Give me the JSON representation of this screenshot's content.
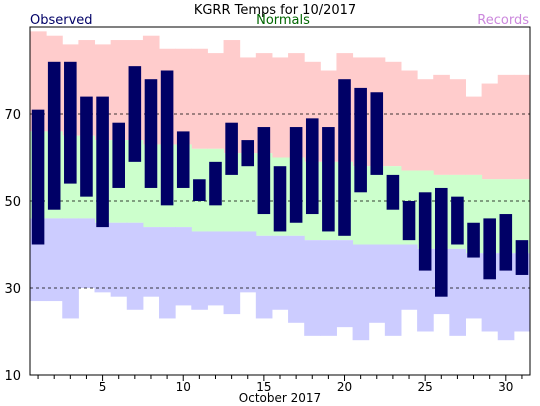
{
  "chart_data": {
    "type": "bar",
    "title": "KGRR Temps for 10/2017",
    "xlabel": "October 2017",
    "ylabel": "",
    "legend": [
      {
        "name": "Observed",
        "color": "#000066"
      },
      {
        "name": "Normals",
        "color": "#006600"
      },
      {
        "name": "Records",
        "color": "#cc88dd"
      }
    ],
    "ylim": [
      10,
      90
    ],
    "yticks": [
      10,
      30,
      50,
      70
    ],
    "xlim": [
      0.5,
      31.5
    ],
    "xticks": [
      5,
      10,
      15,
      20,
      25,
      30
    ],
    "gridlines_y": [
      30,
      50,
      70
    ],
    "colors": {
      "observed": "#000066",
      "normals": "#ccffcc",
      "records_high": "#ffcccc",
      "records_low": "#ccccff"
    },
    "days": [
      1,
      2,
      3,
      4,
      5,
      6,
      7,
      8,
      9,
      10,
      11,
      12,
      13,
      14,
      15,
      16,
      17,
      18,
      19,
      20,
      21,
      22,
      23,
      24,
      25,
      26,
      27,
      28,
      29,
      30,
      31
    ],
    "observed_high": [
      71,
      82,
      82,
      74,
      74,
      68,
      81,
      78,
      80,
      66,
      55,
      59,
      68,
      64,
      67,
      58,
      67,
      69,
      67,
      78,
      76,
      75,
      56,
      50,
      52,
      53,
      51,
      45,
      46,
      47,
      41
    ],
    "observed_low": [
      40,
      48,
      54,
      51,
      44,
      53,
      59,
      53,
      49,
      53,
      50,
      49,
      56,
      58,
      47,
      43,
      45,
      47,
      43,
      42,
      52,
      56,
      48,
      41,
      34,
      28,
      40,
      37,
      32,
      34,
      33
    ],
    "normal_high": [
      66,
      66,
      65,
      65,
      64,
      64,
      64,
      63,
      63,
      63,
      62,
      62,
      61,
      61,
      61,
      60,
      60,
      59,
      59,
      59,
      58,
      58,
      58,
      57,
      57,
      56,
      56,
      56,
      55,
      55,
      55
    ],
    "normal_low": [
      46,
      46,
      46,
      46,
      45,
      45,
      45,
      44,
      44,
      44,
      43,
      43,
      43,
      43,
      42,
      42,
      42,
      41,
      41,
      41,
      40,
      40,
      40,
      40,
      39,
      39,
      39,
      38,
      38,
      38,
      38
    ],
    "record_high": [
      89,
      88,
      86,
      87,
      86,
      87,
      87,
      88,
      85,
      85,
      85,
      84,
      87,
      83,
      84,
      83,
      84,
      82,
      80,
      84,
      83,
      83,
      82,
      80,
      78,
      79,
      78,
      74,
      77,
      79,
      79
    ],
    "record_low": [
      27,
      27,
      23,
      30,
      29,
      28,
      25,
      28,
      23,
      26,
      25,
      26,
      24,
      29,
      23,
      25,
      22,
      19,
      19,
      21,
      18,
      22,
      19,
      25,
      20,
      24,
      19,
      23,
      20,
      18,
      20
    ]
  }
}
